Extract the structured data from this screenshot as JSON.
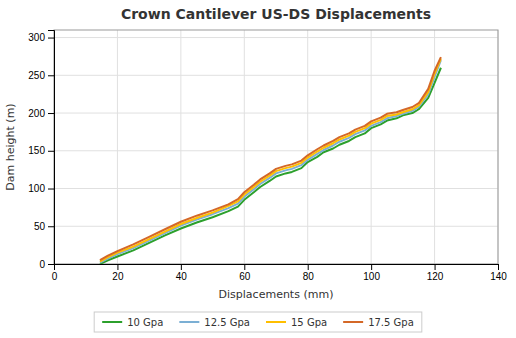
{
  "chart_data": {
    "type": "line",
    "title": "Crown Cantilever US-DS Displacements",
    "xlabel": "Displacements (mm)",
    "ylabel": "Dam height (m)",
    "xlim": [
      0,
      140
    ],
    "ylim": [
      0,
      310
    ],
    "xticks": [
      0,
      20,
      40,
      60,
      80,
      100,
      120,
      140
    ],
    "yticks": [
      0,
      50,
      100,
      150,
      200,
      250,
      300
    ],
    "grid": true,
    "legend": "bottom",
    "x": [
      14.5,
      17,
      20,
      25,
      30,
      35,
      40,
      45,
      50,
      55,
      58,
      60,
      63,
      65,
      68,
      70,
      73,
      75,
      78,
      80,
      83,
      85,
      88,
      90,
      93,
      95,
      98,
      100,
      103,
      105,
      108,
      110,
      113,
      115,
      118,
      120,
      122
    ],
    "series": [
      {
        "name": "10 Gpa",
        "color": "#2ca02c",
        "values": [
          0,
          5,
          10,
          18,
          28,
          38,
          47,
          55,
          62,
          70,
          76,
          85,
          95,
          102,
          110,
          116,
          120,
          122,
          127,
          135,
          142,
          148,
          153,
          158,
          163,
          168,
          173,
          180,
          185,
          190,
          193,
          197,
          200,
          205,
          220,
          240,
          260
        ]
      },
      {
        "name": "12.5 Gpa",
        "color": "#7bafd4",
        "values": [
          2,
          7,
          13,
          21,
          31,
          41,
          51,
          59,
          66,
          74,
          80,
          89,
          99,
          106,
          114,
          120,
          124,
          126,
          131,
          138,
          146,
          151,
          157,
          162,
          167,
          172,
          177,
          183,
          188,
          193,
          196,
          199,
          203,
          208,
          225,
          248,
          270
        ]
      },
      {
        "name": "15 Gpa",
        "color": "#ffbf00",
        "values": [
          3,
          9,
          15,
          23,
          33,
          43,
          53,
          61,
          68,
          77,
          83,
          92,
          102,
          109,
          117,
          123,
          127,
          129,
          134,
          141,
          149,
          154,
          160,
          165,
          170,
          175,
          180,
          186,
          191,
          196,
          198,
          201,
          205,
          210,
          228,
          252,
          272
        ]
      },
      {
        "name": "17.5 Gpa",
        "color": "#d46827",
        "values": [
          5,
          11,
          17,
          26,
          36,
          46,
          56,
          64,
          71,
          79,
          86,
          95,
          105,
          112,
          120,
          126,
          130,
          132,
          137,
          144,
          152,
          157,
          163,
          168,
          173,
          178,
          183,
          189,
          194,
          199,
          201,
          204,
          208,
          213,
          232,
          256,
          274
        ]
      }
    ]
  }
}
